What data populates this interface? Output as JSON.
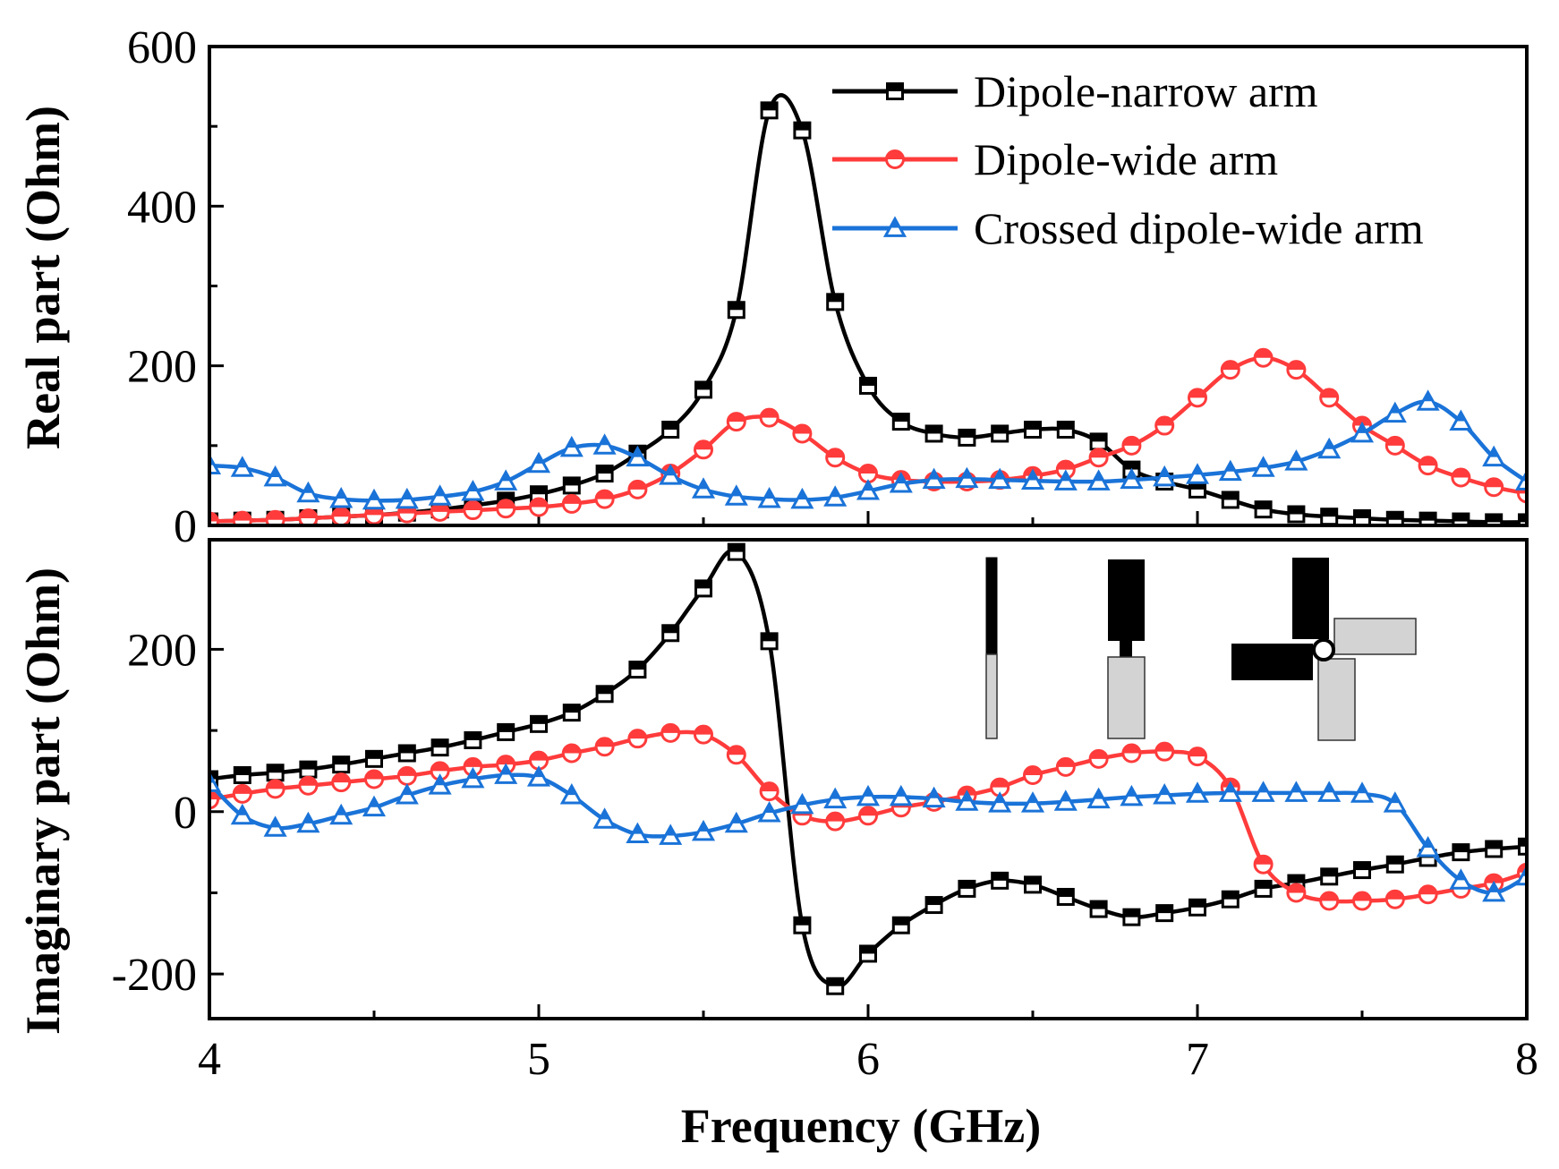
{
  "chart_data": {
    "type": "line",
    "x_axis": {
      "label": "Frequency (GHz)",
      "range": [
        4,
        8
      ],
      "ticks": [
        4,
        5,
        6,
        7,
        8
      ],
      "tick_labels": [
        "4",
        "5",
        "6",
        "7",
        "8"
      ],
      "minor_ticks": [
        4.5,
        5.5,
        6.5,
        7.5
      ]
    },
    "series_info": [
      {
        "key": "narrow",
        "name": "Dipole-narrow arm",
        "color": "#000000",
        "marker": "square"
      },
      {
        "key": "wide",
        "name": "Dipole-wide arm",
        "color": "#ff3b3b",
        "marker": "circle"
      },
      {
        "key": "crossed",
        "name": "Crossed dipole-wide arm",
        "color": "#1a73d8",
        "marker": "triangle"
      }
    ],
    "marker_x": [
      4.0,
      4.1,
      4.2,
      4.3,
      4.4,
      4.5,
      4.6,
      4.7,
      4.8,
      4.9,
      5.0,
      5.1,
      5.2,
      5.3,
      5.4,
      5.5,
      5.6,
      5.7,
      5.8,
      5.9,
      6.0,
      6.1,
      6.2,
      6.3,
      6.4,
      6.5,
      6.6,
      6.7,
      6.8,
      6.9,
      7.0,
      7.1,
      7.2,
      7.3,
      7.4,
      7.5,
      7.6,
      7.7,
      7.8,
      7.9,
      8.0
    ],
    "panels": [
      {
        "id": "real",
        "ylabel": "Real part (Ohm)",
        "ylim": [
          0,
          600
        ],
        "yticks": [
          0,
          200,
          400,
          600
        ],
        "ytick_labels": [
          "0",
          "200",
          "400",
          "600"
        ],
        "series": {
          "narrow": [
            5,
            6,
            7,
            9,
            11,
            13,
            16,
            20,
            25,
            31,
            39,
            50,
            65,
            90,
            120,
            170,
            270,
            520,
            495,
            280,
            175,
            130,
            115,
            110,
            115,
            120,
            120,
            105,
            70,
            55,
            45,
            32,
            20,
            14,
            11,
            9,
            7,
            6,
            5,
            4,
            4
          ],
          "wide": [
            5,
            6,
            7,
            9,
            11,
            13,
            15,
            17,
            19,
            21,
            23,
            27,
            33,
            45,
            65,
            95,
            130,
            135,
            115,
            85,
            65,
            57,
            55,
            55,
            57,
            62,
            70,
            85,
            100,
            125,
            160,
            195,
            210,
            195,
            160,
            125,
            100,
            75,
            60,
            48,
            40
          ],
          "crossed": [
            75,
            72,
            60,
            40,
            33,
            31,
            32,
            36,
            42,
            55,
            77,
            97,
            100,
            85,
            62,
            45,
            36,
            33,
            32,
            35,
            43,
            52,
            57,
            58,
            57,
            56,
            55,
            55,
            57,
            60,
            63,
            67,
            72,
            80,
            95,
            115,
            140,
            155,
            130,
            85,
            55
          ]
        }
      },
      {
        "id": "imag",
        "ylabel": "Imaginary part (Ohm)",
        "ylim": [
          -255,
          335
        ],
        "yticks": [
          -200,
          0,
          200
        ],
        "ytick_labels": [
          "-200",
          "0",
          "200"
        ],
        "series": {
          "narrow": [
            40,
            45,
            48,
            52,
            58,
            65,
            72,
            79,
            88,
            98,
            108,
            122,
            145,
            175,
            220,
            275,
            320,
            210,
            -140,
            -215,
            -175,
            -140,
            -115,
            -95,
            -85,
            -90,
            -105,
            -120,
            -130,
            -125,
            -118,
            -108,
            -95,
            -88,
            -80,
            -72,
            -65,
            -57,
            -50,
            -46,
            -43
          ],
          "wide": [
            15,
            22,
            28,
            32,
            36,
            40,
            44,
            50,
            55,
            58,
            63,
            72,
            80,
            90,
            97,
            95,
            70,
            25,
            -5,
            -12,
            -5,
            5,
            12,
            20,
            30,
            45,
            55,
            65,
            72,
            74,
            68,
            30,
            -65,
            -100,
            -110,
            -110,
            -108,
            -102,
            -95,
            -88,
            -75
          ],
          "crossed": [
            35,
            -5,
            -20,
            -15,
            -5,
            5,
            20,
            32,
            40,
            45,
            42,
            20,
            -10,
            -28,
            -30,
            -25,
            -15,
            -2,
            8,
            15,
            18,
            18,
            16,
            12,
            10,
            10,
            12,
            15,
            18,
            20,
            22,
            23,
            23,
            23,
            23,
            22,
            10,
            -45,
            -85,
            -100,
            -80
          ]
        }
      }
    ]
  }
}
